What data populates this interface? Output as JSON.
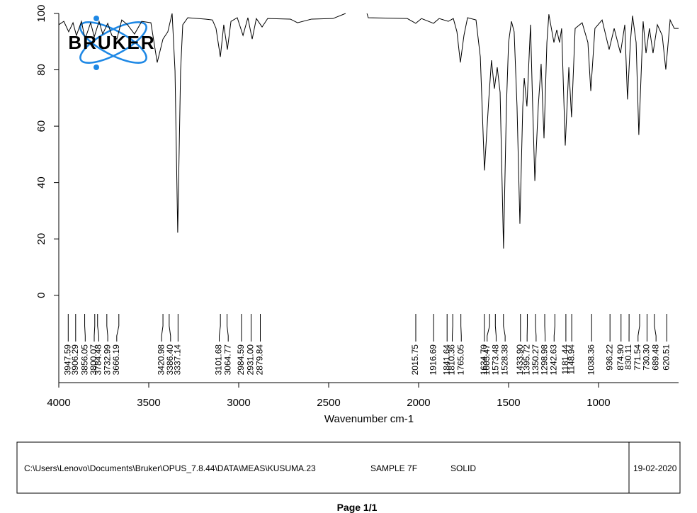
{
  "logo": "BRUKER",
  "footer": {
    "path": "C:\\Users\\Lenovo\\Documents\\Bruker\\OPUS_7.8.44\\DATA\\MEAS\\KUSUMA.23",
    "sample": "SAMPLE 7F",
    "form": "SOLID",
    "date": "19-02-2020",
    "page": "Page 1/1"
  },
  "chart_data": {
    "type": "line",
    "x_label": "Wavenumber cm-1",
    "xlim": [
      4000,
      555
    ],
    "ylim": [
      -31,
      100
    ],
    "xticks": [
      4000,
      3500,
      3000,
      2500,
      2000,
      1500,
      1000
    ],
    "yticks": [
      0,
      20,
      40,
      60,
      80,
      100
    ],
    "x": [
      4000,
      3972,
      3945,
      3921,
      3902,
      3874,
      3854,
      3823,
      3803,
      3776,
      3756,
      3728,
      3705,
      3677,
      3650,
      3618,
      3579,
      3539,
      3488,
      3453,
      3421,
      3394,
      3370,
      3354,
      3339,
      3323,
      3311,
      3283,
      3185,
      3146,
      3126,
      3102,
      3083,
      3063,
      3043,
      3008,
      2976,
      2949,
      2925,
      2902,
      2870,
      2839,
      2713,
      2673,
      2595,
      2476,
      2406,
      2350,
      2287,
      2280,
      2063,
      2016,
      1984,
      1917,
      1886,
      1835,
      1807,
      1787,
      1768,
      1748,
      1728,
      1681,
      1657,
      1634,
      1610,
      1595,
      1579,
      1563,
      1547,
      1528,
      1512,
      1500,
      1484,
      1469,
      1453,
      1437,
      1421,
      1413,
      1398,
      1378,
      1366,
      1354,
      1335,
      1319,
      1303,
      1287,
      1276,
      1248,
      1232,
      1217,
      1205,
      1185,
      1165,
      1150,
      1130,
      1091,
      1059,
      1043,
      1020,
      980,
      941,
      913,
      878,
      854,
      839,
      823,
      811,
      791,
      776,
      752,
      736,
      717,
      697,
      673,
      646,
      626,
      602,
      579,
      555
    ],
    "series": [
      {
        "color": "#000000",
        "values": [
          96.0,
          97.2,
          93.5,
          96.7,
          92.2,
          97.2,
          90.9,
          96.7,
          91.7,
          97.2,
          92.7,
          96.5,
          92.2,
          90.9,
          97.7,
          96.0,
          92.7,
          97.2,
          96.7,
          82.6,
          90.9,
          93.5,
          100,
          79.6,
          22.2,
          79.6,
          96.0,
          98.5,
          98.0,
          97.7,
          94.7,
          84.6,
          96.0,
          87.2,
          97.2,
          98.5,
          92.2,
          98.5,
          90.9,
          98.2,
          95.2,
          98.2,
          98.0,
          96.7,
          98.0,
          98.2,
          100,
          null,
          100,
          98.5,
          98.2,
          96.5,
          98.2,
          96.5,
          98.2,
          97.2,
          98.2,
          93.5,
          82.6,
          92.2,
          98.5,
          97.7,
          84.6,
          44.3,
          69.5,
          83.4,
          73.3,
          80.9,
          72.0,
          16.6,
          67.0,
          89.7,
          97.2,
          93.5,
          67.0,
          25.4,
          67.0,
          77.1,
          67.0,
          96.0,
          67.0,
          40.6,
          67.0,
          82.1,
          55.7,
          89.7,
          99.7,
          89.7,
          94.2,
          89.7,
          94.7,
          53.1,
          80.9,
          63.2,
          94.7,
          96.7,
          89.7,
          72.5,
          94.7,
          97.7,
          87.2,
          94.7,
          85.9,
          96.0,
          69.5,
          89.7,
          99.2,
          89.7,
          56.9,
          97.2,
          85.9,
          94.7,
          85.9,
          96.0,
          92.2,
          80.1,
          97.7,
          94.7,
          94.7
        ]
      }
    ],
    "peaks": {
      "values": [
        3947.59,
        3906.29,
        3856.05,
        3800.07,
        3784.48,
        3732.99,
        3666.19,
        3420.98,
        3386.4,
        3337.14,
        3101.68,
        3064.77,
        2984.59,
        2931,
        2879.84,
        2015.75,
        1916.69,
        1841.64,
        1810.36,
        1765.05,
        1634.7,
        1605.47,
        1573.48,
        1528.38,
        1433.9,
        1395.72,
        1350.27,
        1298.98,
        1242.63,
        1181.44,
        1148.94,
        1038.36,
        936.22,
        874.9,
        830.11,
        771.54,
        730.3,
        689.48,
        620.51
      ],
      "value_labels": [
        "3947.59",
        "3906.29",
        "3856.05",
        "3800.07",
        "3784.48",
        "3732.99",
        "3666.19",
        "3420.98",
        "3386.40",
        "3337.14",
        "3101.68",
        "3064.77",
        "2984.59",
        "2931.00",
        "2879.84",
        "2015.75",
        "1916.69",
        "1841.64",
        "1810.36",
        "1765.05",
        "1634.70",
        "1605.47",
        "1573.48",
        "1528.38",
        "1433.90",
        "1395.72",
        "1350.27",
        "1298.98",
        "1242.63",
        "1181.44",
        "1148.94",
        "1038.36",
        "936.22",
        "874.90",
        "830.11",
        "771.54",
        "730.30",
        "689.48",
        "620.51"
      ]
    }
  }
}
